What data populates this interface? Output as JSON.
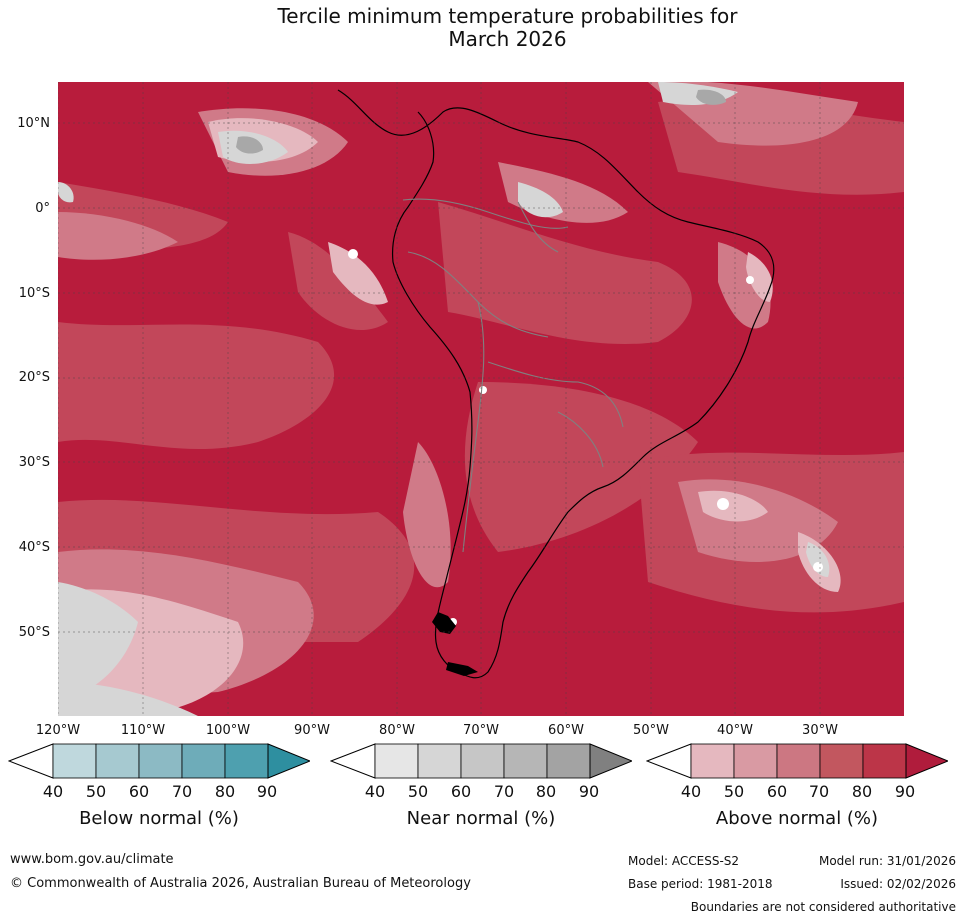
{
  "title_line1": "Tercile minimum temperature probabilities for",
  "title_line2": "March 2026",
  "lat_labels": [
    "10°N",
    "0°",
    "10°S",
    "20°S",
    "30°S",
    "40°S",
    "50°S"
  ],
  "lon_labels": [
    "120°W",
    "110°W",
    "100°W",
    "90°W",
    "80°W",
    "70°W",
    "60°W",
    "50°W",
    "40°W",
    "30°W"
  ],
  "colorbars": [
    {
      "label": "Below normal (%)",
      "ticks": [
        "40",
        "50",
        "60",
        "70",
        "80",
        "90"
      ],
      "colors": [
        "#ffffff",
        "#bfd8dd",
        "#a6c9d0",
        "#8cbac4",
        "#6eacb9",
        "#4ea0af",
        "#2e8fa0"
      ]
    },
    {
      "label": "Near normal (%)",
      "ticks": [
        "40",
        "50",
        "60",
        "70",
        "80",
        "90"
      ],
      "colors": [
        "#ffffff",
        "#e6e6e6",
        "#d6d6d6",
        "#c6c6c6",
        "#b6b6b6",
        "#a3a3a3",
        "#808080"
      ]
    },
    {
      "label": "Above normal (%)",
      "ticks": [
        "40",
        "50",
        "60",
        "70",
        "80",
        "90"
      ],
      "colors": [
        "#ffffff",
        "#e5b8bf",
        "#d99aa3",
        "#cc7782",
        "#c2575f",
        "#bc3548",
        "#b01c3c"
      ]
    }
  ],
  "footer": {
    "url": "www.bom.gov.au/climate",
    "copyright": "© Commonwealth of Australia 2026, Australian Bureau of Meteorology",
    "model": "Model: ACCESS-S2",
    "base_period": "Base period: 1981-2018",
    "model_run": "Model run: 31/01/2026",
    "issued": "Issued: 02/02/2026",
    "disclaimer": "Boundaries are not considered authoritative"
  },
  "map_colors": {
    "dark": "#b81c3c",
    "mid": "#c2475a",
    "light": "#d07a88",
    "pale": "#e5b8bf",
    "grey": "#d6d6d6",
    "greydark": "#a8a8a8",
    "coast": "#000000",
    "border": "#808080"
  }
}
